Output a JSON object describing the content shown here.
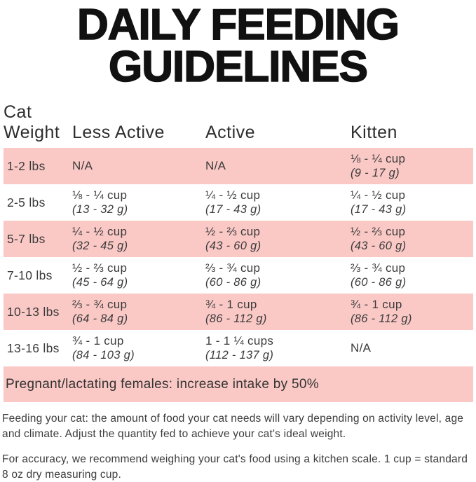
{
  "colors": {
    "row_pink": "#fac9c6",
    "title_black": "#111111",
    "text_dark": "#3b3b3b"
  },
  "title": {
    "line1": "DAILY FEEDING",
    "line2": "GUIDELINES"
  },
  "table": {
    "headers": {
      "weight": "Cat\nWeight",
      "less_active": "Less Active",
      "active": "Active",
      "kitten": "Kitten"
    },
    "rows": [
      {
        "weight": "1-2 lbs",
        "less_active": {
          "cup": "N/A",
          "grams": ""
        },
        "active": {
          "cup": "N/A",
          "grams": ""
        },
        "kitten": {
          "cup": "⅛ - ¼ cup",
          "grams": "(9 - 17 g)"
        }
      },
      {
        "weight": "2-5 lbs",
        "less_active": {
          "cup": "⅛ - ¼ cup",
          "grams": "(13 - 32 g)"
        },
        "active": {
          "cup": "¼ - ½ cup",
          "grams": "(17 - 43 g)"
        },
        "kitten": {
          "cup": "¼ - ½ cup",
          "grams": "(17 - 43 g)"
        }
      },
      {
        "weight": "5-7 lbs",
        "less_active": {
          "cup": "¼ - ½ cup",
          "grams": "(32 - 45 g)"
        },
        "active": {
          "cup": "½ - ⅔ cup",
          "grams": "(43 - 60 g)"
        },
        "kitten": {
          "cup": "½ - ⅔ cup",
          "grams": "(43 - 60 g)"
        }
      },
      {
        "weight": "7-10 lbs",
        "less_active": {
          "cup": "½ - ⅔ cup",
          "grams": "(45 - 64 g)"
        },
        "active": {
          "cup": "⅔ - ¾ cup",
          "grams": "(60 - 86 g)"
        },
        "kitten": {
          "cup": "⅔ - ¾ cup",
          "grams": "(60 - 86 g)"
        }
      },
      {
        "weight": "10-13 lbs",
        "less_active": {
          "cup": "⅔ - ¾ cup",
          "grams": "(64 - 84 g)"
        },
        "active": {
          "cup": "¾ - 1 cup",
          "grams": "(86 - 112 g)"
        },
        "kitten": {
          "cup": "¾ - 1 cup",
          "grams": "(86 - 112 g)"
        }
      },
      {
        "weight": "13-16 lbs",
        "less_active": {
          "cup": "¾ - 1 cup",
          "grams": "(84 - 103 g)"
        },
        "active": {
          "cup": "1 - 1 ¼ cups",
          "grams": "(112 - 137 g)"
        },
        "kitten": {
          "cup": "N/A",
          "grams": ""
        }
      }
    ],
    "banner": "Pregnant/lactating females: increase intake by 50%"
  },
  "footer": {
    "p1": "Feeding your cat: the amount of food your cat needs will vary depending on activity level, age and climate. Adjust the quantity fed to achieve your cat's ideal weight.",
    "p2": "For accuracy, we recommend weighing your cat's food using a kitchen scale. 1 cup = standard 8 oz dry measuring cup."
  }
}
